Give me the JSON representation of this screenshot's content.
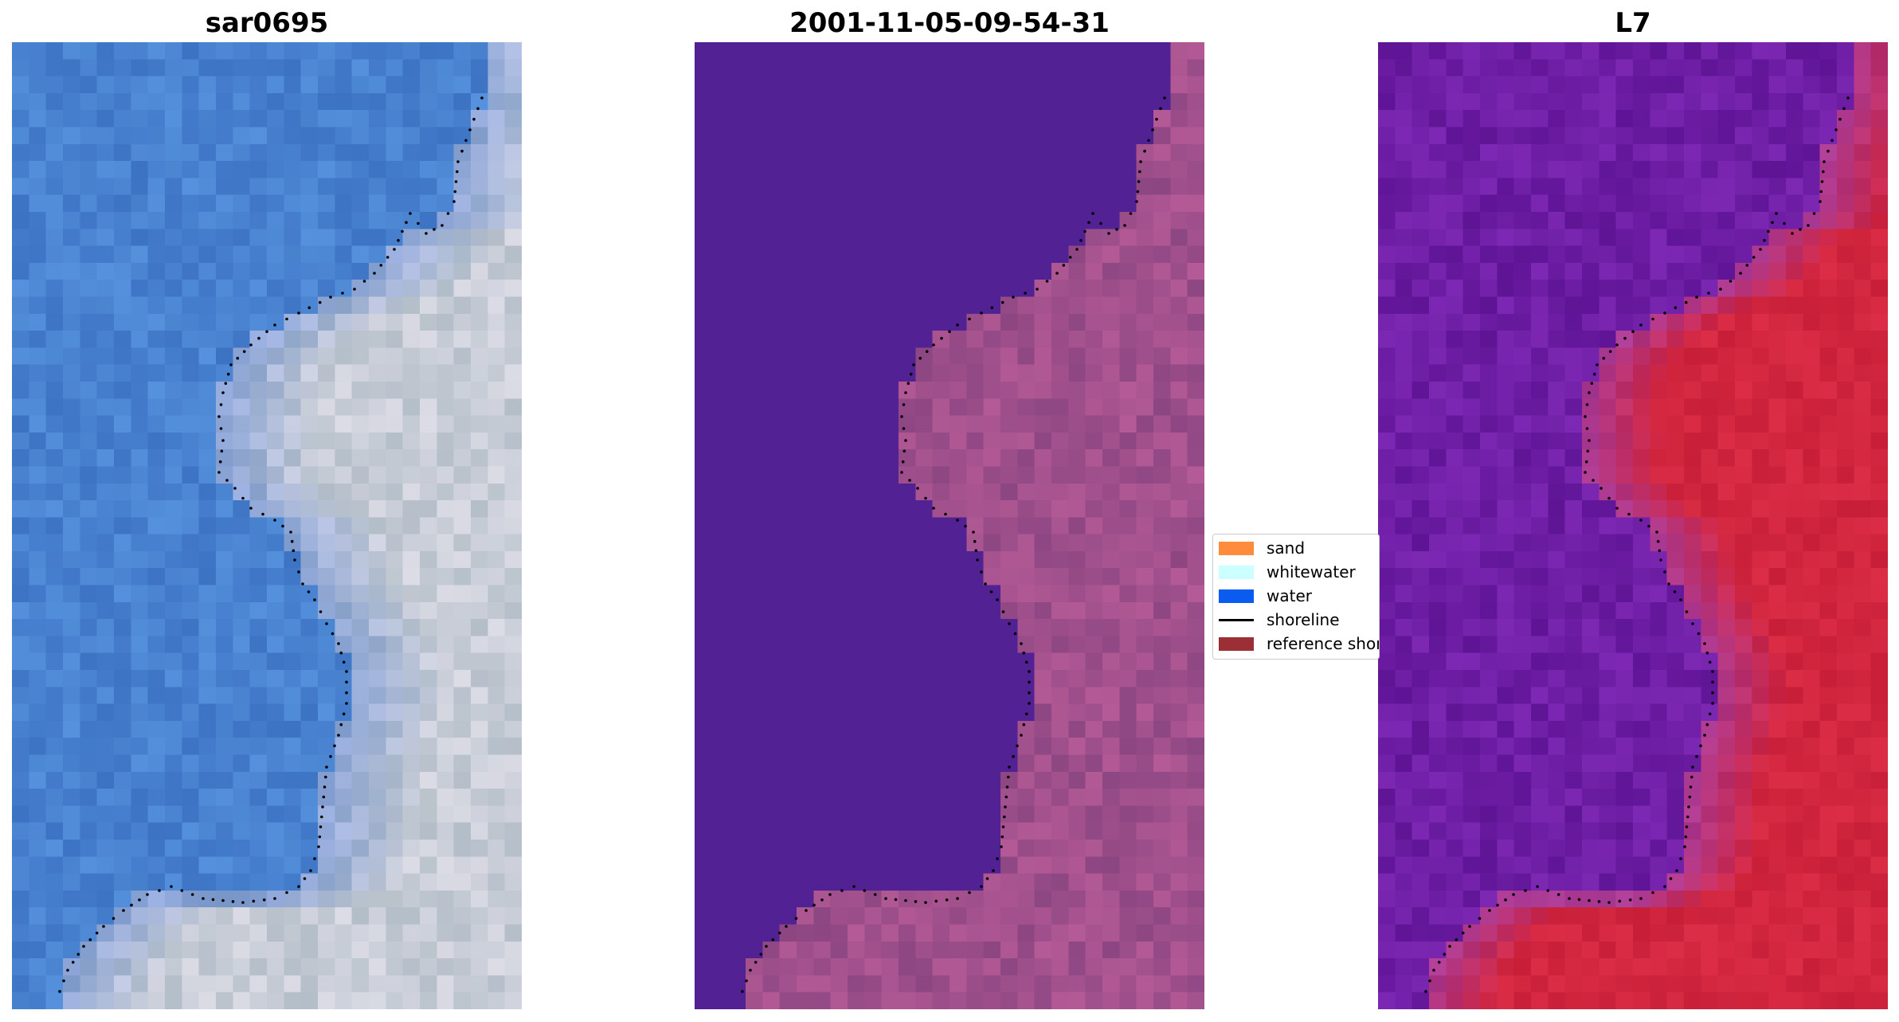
{
  "panels": [
    {
      "title": "sar0695"
    },
    {
      "title": "2001-11-05-09-54-31"
    },
    {
      "title": "L7"
    }
  ],
  "legend": {
    "items": [
      {
        "label": "sand",
        "color": "#ff8c3c",
        "kind": "patch"
      },
      {
        "label": "whitewater",
        "color": "#ccffff",
        "kind": "patch"
      },
      {
        "label": "water",
        "color": "#0a5cf0",
        "kind": "patch"
      },
      {
        "label": "shoreline",
        "color": "#000000",
        "kind": "line"
      },
      {
        "label": "reference shoreline",
        "color": "#9b2f35",
        "kind": "patch"
      }
    ]
  },
  "colors": {
    "water_class": "#522294",
    "shoreline_dots": "#000000"
  }
}
